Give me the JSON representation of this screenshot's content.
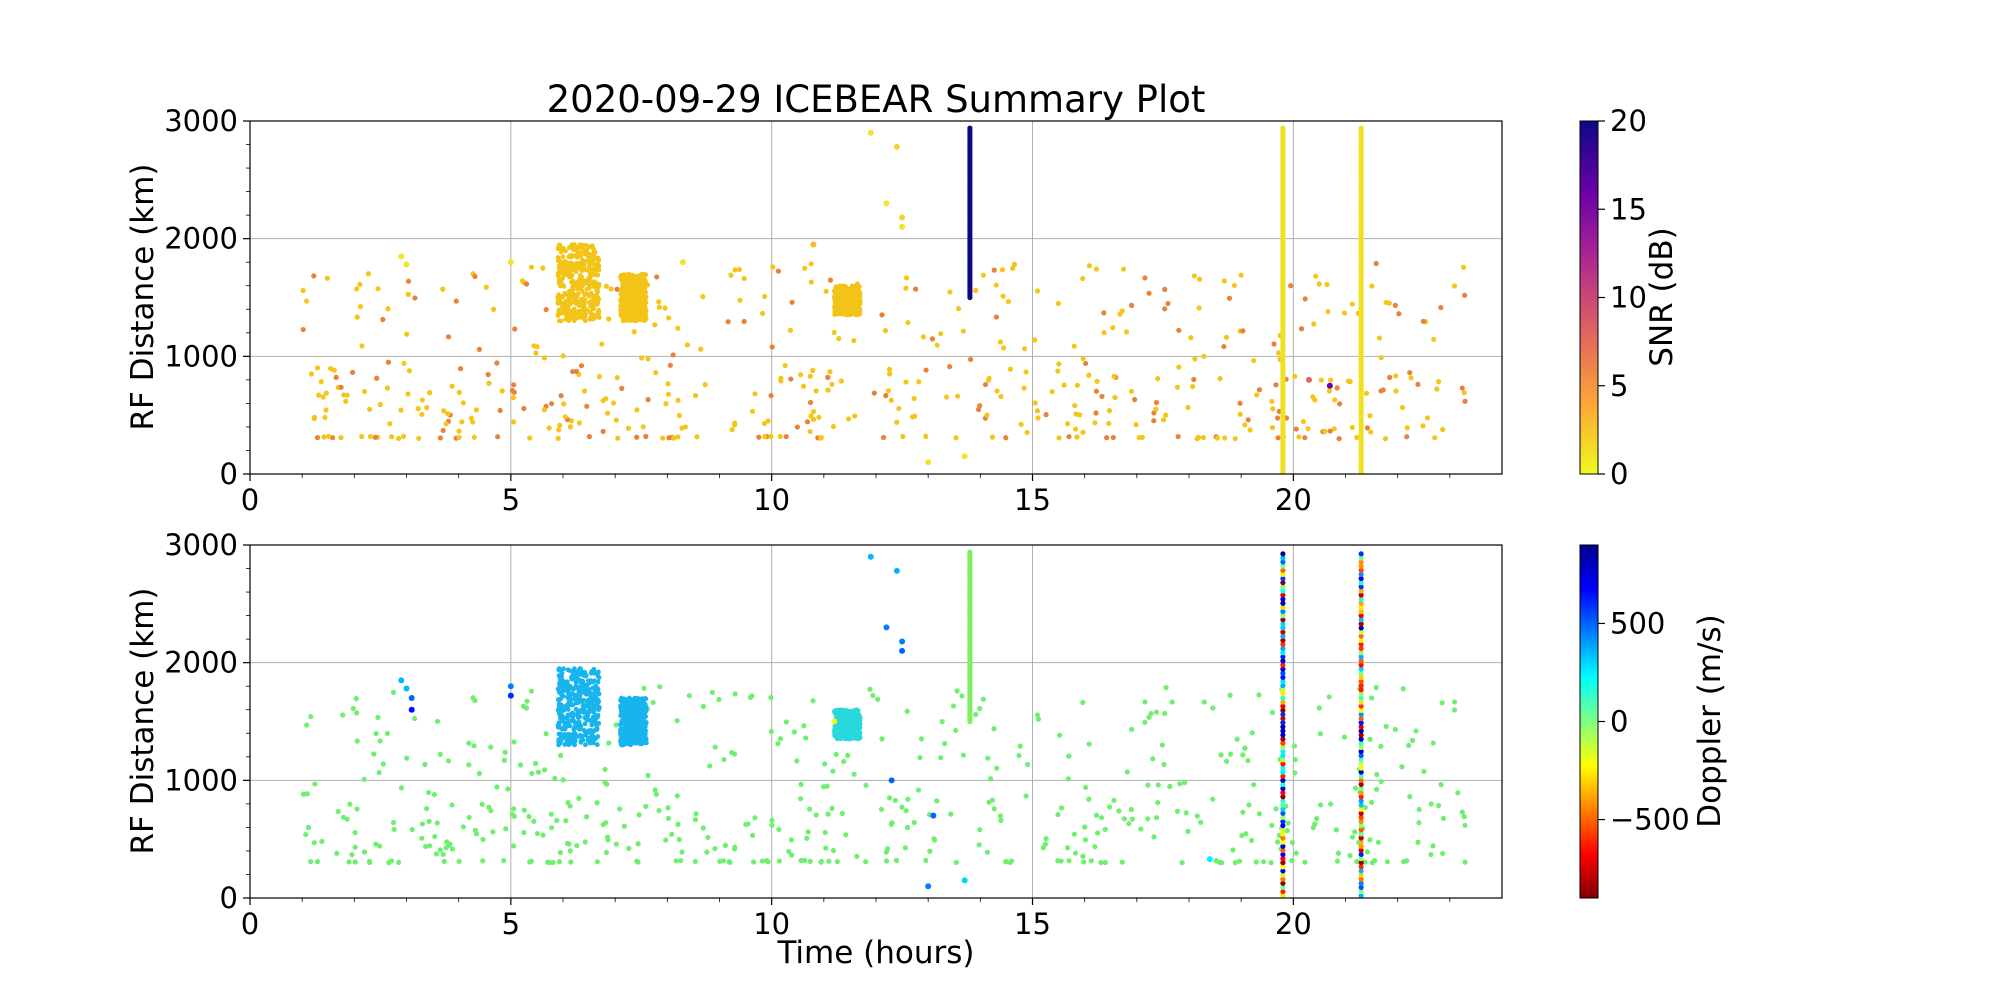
{
  "chart_data": {
    "type": "scatter",
    "title": "2020-09-29 ICEBEAR Summary Plot",
    "xlabel": "Time (hours)",
    "grid": true,
    "panels": [
      {
        "ylabel": "RF Distance (km)",
        "xlim": [
          0,
          24
        ],
        "ylim": [
          0,
          3000
        ],
        "xticks": [
          0,
          5,
          10,
          15,
          20
        ],
        "yticks": [
          0,
          1000,
          2000,
          3000
        ],
        "colorbar": {
          "label": "SNR (dB)",
          "range": [
            0,
            20
          ],
          "ticks": [
            0,
            5,
            10,
            15,
            20
          ],
          "colormap": "plasma_r",
          "stops": [
            "#f0f921",
            "#fca636",
            "#e16462",
            "#b12a90",
            "#6a00a8",
            "#0d0887"
          ]
        },
        "background_color": "#f5c518",
        "background_alt_color": "#e8823a",
        "series": [
          {
            "x": 13.8,
            "y_range": [
              1500,
              2950
            ],
            "color": "#0d0887"
          },
          {
            "x": 19.8,
            "y_range": [
              0,
              2950
            ],
            "color": "#f0e020"
          },
          {
            "x": 21.3,
            "y_range": [
              0,
              2950
            ],
            "color": "#f0e020"
          }
        ],
        "clusters": [
          {
            "x_range": [
              5.9,
              6.7
            ],
            "y_range": [
              1300,
              1950
            ],
            "color": "#f2c418"
          },
          {
            "x_range": [
              7.1,
              7.6
            ],
            "y_range": [
              1300,
              1700
            ],
            "color": "#f2c418"
          },
          {
            "x_range": [
              11.2,
              11.7
            ],
            "y_range": [
              1350,
              1600
            ],
            "color": "#f2c418"
          }
        ],
        "points": [
          {
            "x": 2.9,
            "y": 1850,
            "v": 1
          },
          {
            "x": 3.0,
            "y": 1780,
            "v": 1
          },
          {
            "x": 5.0,
            "y": 1800,
            "v": 1
          },
          {
            "x": 11.9,
            "y": 2900,
            "v": 1
          },
          {
            "x": 12.2,
            "y": 2300,
            "v": 1
          },
          {
            "x": 12.4,
            "y": 2780,
            "v": 2
          },
          {
            "x": 12.5,
            "y": 2180,
            "v": 2
          },
          {
            "x": 12.5,
            "y": 2100,
            "v": 1
          },
          {
            "x": 13.0,
            "y": 100,
            "v": 1
          },
          {
            "x": 13.7,
            "y": 150,
            "v": 1
          },
          {
            "x": 20.7,
            "y": 750,
            "v": 16
          },
          {
            "x": 20.3,
            "y": 800,
            "v": 8
          },
          {
            "x": 10.8,
            "y": 1950,
            "v": 3
          },
          {
            "x": 8.3,
            "y": 1800,
            "v": 1
          }
        ]
      },
      {
        "ylabel": "RF Distance (km)",
        "xlim": [
          0,
          24
        ],
        "ylim": [
          0,
          3000
        ],
        "xticks": [
          0,
          5,
          10,
          15,
          20
        ],
        "yticks": [
          0,
          1000,
          2000,
          3000
        ],
        "colorbar": {
          "label": "Doppler (m/s)",
          "range": [
            -900,
            900
          ],
          "ticks": [
            500,
            0,
            -500
          ],
          "tick_labels": [
            "500",
            "0",
            "−500"
          ],
          "colormap": "jet_r",
          "stops": [
            "#800000",
            "#ff0000",
            "#ff8000",
            "#ffff00",
            "#80ff80",
            "#00ffff",
            "#0080ff",
            "#0000ff",
            "#00008f"
          ]
        },
        "background_color": "#6ef06e",
        "series": [
          {
            "x": 13.8,
            "y_range": [
              1500,
              2950
            ],
            "color": "#7fef5f"
          }
        ],
        "mixed_lines": [
          19.8,
          21.3
        ],
        "clusters": [
          {
            "x_range": [
              5.9,
              6.7
            ],
            "y_range": [
              1300,
              1950
            ],
            "color": "#18b4ee"
          },
          {
            "x_range": [
              7.1,
              7.6
            ],
            "y_range": [
              1300,
              1700
            ],
            "color": "#18b4ee"
          },
          {
            "x_range": [
              11.2,
              11.7
            ],
            "y_range": [
              1350,
              1600
            ],
            "color": "#28d8dc"
          }
        ],
        "points": [
          {
            "x": 2.9,
            "y": 1850,
            "v": 350
          },
          {
            "x": 3.0,
            "y": 1780,
            "v": 350
          },
          {
            "x": 3.1,
            "y": 1600,
            "v": 650
          },
          {
            "x": 3.1,
            "y": 1700,
            "v": 500
          },
          {
            "x": 5.0,
            "y": 1800,
            "v": 450
          },
          {
            "x": 5.0,
            "y": 1720,
            "v": 600
          },
          {
            "x": 11.9,
            "y": 2900,
            "v": 350
          },
          {
            "x": 12.2,
            "y": 2300,
            "v": 450
          },
          {
            "x": 12.4,
            "y": 2780,
            "v": 350
          },
          {
            "x": 12.5,
            "y": 2180,
            "v": 450
          },
          {
            "x": 12.5,
            "y": 2100,
            "v": 500
          },
          {
            "x": 13.0,
            "y": 100,
            "v": 450
          },
          {
            "x": 13.7,
            "y": 150,
            "v": 300
          },
          {
            "x": 13.1,
            "y": 700,
            "v": 500
          },
          {
            "x": 12.3,
            "y": 1000,
            "v": 500
          },
          {
            "x": 18.4,
            "y": 330,
            "v": 250
          },
          {
            "x": 11.2,
            "y": 1500,
            "v": -200
          }
        ]
      }
    ]
  }
}
